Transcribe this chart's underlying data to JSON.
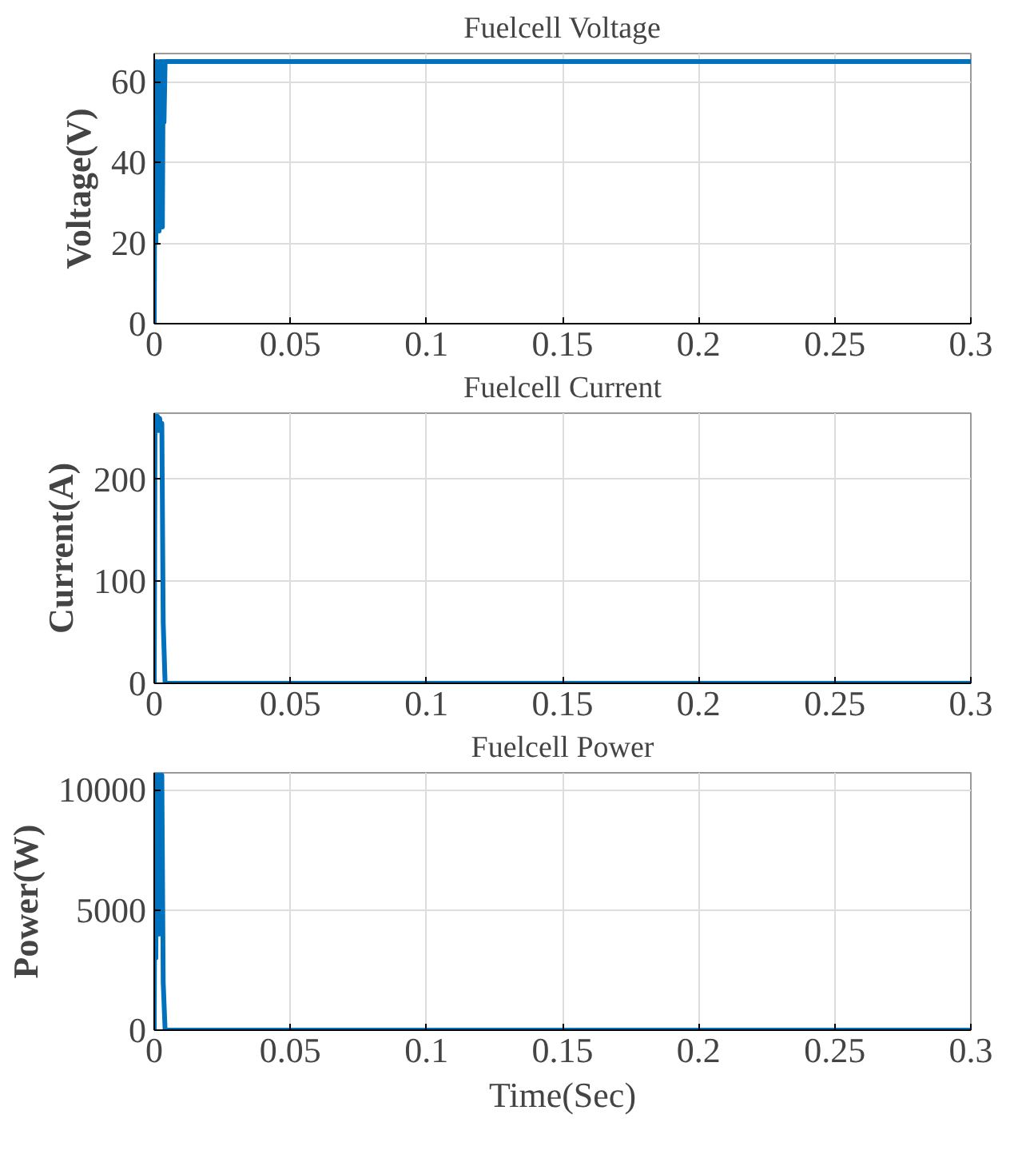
{
  "chart_data": [
    {
      "type": "line",
      "title": "Fuelcell Voltage",
      "ylabel": "Voltage(V)",
      "xlim": [
        0,
        0.3
      ],
      "xticks": [
        0,
        0.05,
        0.1,
        0.15,
        0.2,
        0.25,
        0.3
      ],
      "ylim": [
        0,
        67
      ],
      "yticks": [
        0,
        20,
        40,
        60
      ],
      "grid": true,
      "series": [
        {
          "color": "#0072bd",
          "x": [
            0,
            0.0003,
            0.0006,
            0.0009,
            0.0012,
            0.0015,
            0.0018,
            0.0021,
            0.0024,
            0.0027,
            0.003,
            0.0033,
            0.0036,
            0.004,
            0.3
          ],
          "values": [
            0,
            65,
            20,
            65,
            30,
            64,
            23,
            65,
            40,
            65,
            24,
            65,
            50,
            65,
            65
          ]
        }
      ]
    },
    {
      "type": "line",
      "title": "Fuelcell Current",
      "ylabel": "Current(A)",
      "xlim": [
        0,
        0.3
      ],
      "xticks": [
        0,
        0.05,
        0.1,
        0.15,
        0.2,
        0.25,
        0.3
      ],
      "ylim": [
        0,
        265
      ],
      "yticks": [
        0,
        100,
        200
      ],
      "grid": true,
      "series": [
        {
          "color": "#0072bd",
          "x": [
            0,
            0.0003,
            0.0008,
            0.0012,
            0.0016,
            0.002,
            0.0024,
            0.0028,
            0.0033,
            0.004,
            0.3
          ],
          "values": [
            0,
            262,
            250,
            262,
            248,
            260,
            250,
            255,
            60,
            0,
            0
          ]
        }
      ]
    },
    {
      "type": "line",
      "title": "Fuelcell Power",
      "ylabel": "Power(W)",
      "xlabel": "Time(Sec)",
      "xlim": [
        0,
        0.3
      ],
      "xticks": [
        0,
        0.05,
        0.1,
        0.15,
        0.2,
        0.25,
        0.3
      ],
      "ylim": [
        0,
        10700
      ],
      "yticks": [
        0,
        5000,
        10000
      ],
      "grid": true,
      "series": [
        {
          "color": "#0072bd",
          "x": [
            0,
            0.0003,
            0.0006,
            0.0009,
            0.0012,
            0.0015,
            0.0018,
            0.0021,
            0.0024,
            0.0028,
            0.0033,
            0.004,
            0.3
          ],
          "values": [
            0,
            10600,
            3000,
            10600,
            5000,
            10600,
            4000,
            10600,
            6000,
            10600,
            2000,
            0,
            0
          ]
        }
      ]
    }
  ]
}
